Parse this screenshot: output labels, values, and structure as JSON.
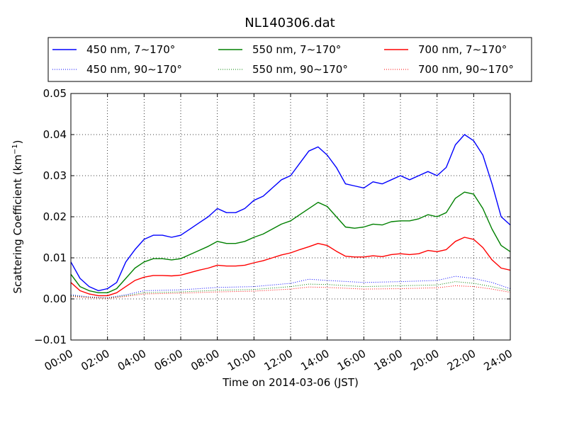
{
  "chart_data": {
    "type": "line",
    "title": "NL140306.dat",
    "xlabel": "Time on 2014-03-06 (JST)",
    "ylabel_main": "Scattering Coefficient (km",
    "ylabel_sup": "−1",
    "ylabel_end": ")",
    "xlim": [
      0,
      24
    ],
    "ylim": [
      -0.01,
      0.05
    ],
    "x_ticks": [
      "00:00",
      "02:00",
      "04:00",
      "06:00",
      "08:00",
      "10:00",
      "12:00",
      "14:00",
      "16:00",
      "18:00",
      "20:00",
      "22:00",
      "24:00"
    ],
    "y_ticks": [
      "0.05",
      "0.04",
      "0.03",
      "0.02",
      "0.01",
      "0.00",
      "−0.01"
    ],
    "grid": true,
    "legend_position": "top",
    "series": [
      {
        "name": "450 nm, 7∼170°",
        "color": "#0000ff",
        "style": "solid",
        "x": [
          0,
          0.5,
          1,
          1.5,
          2,
          2.5,
          3,
          3.5,
          4,
          4.5,
          5,
          5.5,
          6,
          6.5,
          7,
          7.5,
          8,
          8.5,
          9,
          9.5,
          10,
          10.5,
          11,
          11.5,
          12,
          12.5,
          13,
          13.5,
          14,
          14.5,
          15,
          15.5,
          16,
          16.5,
          17,
          17.5,
          18,
          18.5,
          19,
          19.5,
          20,
          20.5,
          21,
          21.5,
          22,
          22.5,
          23,
          23.5,
          24
        ],
        "y": [
          0.009,
          0.005,
          0.003,
          0.002,
          0.0025,
          0.004,
          0.009,
          0.012,
          0.0145,
          0.0155,
          0.0155,
          0.015,
          0.0155,
          0.017,
          0.0185,
          0.02,
          0.022,
          0.021,
          0.021,
          0.022,
          0.024,
          0.025,
          0.027,
          0.029,
          0.03,
          0.033,
          0.036,
          0.037,
          0.035,
          0.032,
          0.028,
          0.0275,
          0.027,
          0.0285,
          0.028,
          0.029,
          0.03,
          0.029,
          0.03,
          0.031,
          0.03,
          0.032,
          0.0375,
          0.04,
          0.0385,
          0.035,
          0.028,
          0.02,
          0.018
        ]
      },
      {
        "name": "450 nm, 90∼170°",
        "color": "#0000ff",
        "style": "dotted",
        "x": [
          0,
          1,
          2,
          3,
          4,
          6,
          8,
          10,
          12,
          13,
          14,
          16,
          18,
          20,
          21,
          22,
          23,
          24
        ],
        "y": [
          0.001,
          0.0005,
          0.0003,
          0.001,
          0.002,
          0.0022,
          0.0028,
          0.003,
          0.0038,
          0.0048,
          0.0045,
          0.004,
          0.0042,
          0.0045,
          0.0055,
          0.005,
          0.004,
          0.0025
        ]
      },
      {
        "name": "550 nm, 7∼170°",
        "color": "#008000",
        "style": "solid",
        "x": [
          0,
          0.5,
          1,
          1.5,
          2,
          2.5,
          3,
          3.5,
          4,
          4.5,
          5,
          5.5,
          6,
          6.5,
          7,
          7.5,
          8,
          8.5,
          9,
          9.5,
          10,
          10.5,
          11,
          11.5,
          12,
          12.5,
          13,
          13.5,
          14,
          14.5,
          15,
          15.5,
          16,
          16.5,
          17,
          17.5,
          18,
          18.5,
          19,
          19.5,
          20,
          20.5,
          21,
          21.5,
          22,
          22.5,
          23,
          23.5,
          24
        ],
        "y": [
          0.006,
          0.003,
          0.002,
          0.0015,
          0.0015,
          0.0025,
          0.005,
          0.0075,
          0.009,
          0.0098,
          0.0098,
          0.0095,
          0.0098,
          0.0108,
          0.0118,
          0.0128,
          0.014,
          0.0135,
          0.0135,
          0.014,
          0.015,
          0.0158,
          0.017,
          0.0182,
          0.019,
          0.0205,
          0.022,
          0.0235,
          0.0225,
          0.02,
          0.0175,
          0.0172,
          0.0175,
          0.0182,
          0.018,
          0.0188,
          0.019,
          0.019,
          0.0195,
          0.0205,
          0.02,
          0.021,
          0.0245,
          0.026,
          0.0255,
          0.022,
          0.017,
          0.013,
          0.0115
        ]
      },
      {
        "name": "550 nm, 90∼170°",
        "color": "#008000",
        "style": "dotted",
        "x": [
          0,
          1,
          2,
          3,
          4,
          6,
          8,
          10,
          12,
          13,
          14,
          16,
          18,
          20,
          21,
          22,
          23,
          24
        ],
        "y": [
          0.0008,
          0.0004,
          0.0002,
          0.0008,
          0.0015,
          0.0017,
          0.0021,
          0.0023,
          0.003,
          0.0036,
          0.0035,
          0.003,
          0.0032,
          0.0034,
          0.0042,
          0.0038,
          0.003,
          0.002
        ]
      },
      {
        "name": "700 nm, 7∼170°",
        "color": "#ff0000",
        "style": "solid",
        "x": [
          0,
          0.5,
          1,
          1.5,
          2,
          2.5,
          3,
          3.5,
          4,
          4.5,
          5,
          5.5,
          6,
          6.5,
          7,
          7.5,
          8,
          8.5,
          9,
          9.5,
          10,
          10.5,
          11,
          11.5,
          12,
          12.5,
          13,
          13.5,
          14,
          14.5,
          15,
          15.5,
          16,
          16.5,
          17,
          17.5,
          18,
          18.5,
          19,
          19.5,
          20,
          20.5,
          21,
          21.5,
          22,
          22.5,
          23,
          23.5,
          24
        ],
        "y": [
          0.004,
          0.002,
          0.0012,
          0.0008,
          0.0008,
          0.0015,
          0.003,
          0.0045,
          0.0053,
          0.0057,
          0.0057,
          0.0056,
          0.0058,
          0.0064,
          0.007,
          0.0075,
          0.0082,
          0.008,
          0.008,
          0.0082,
          0.0088,
          0.0093,
          0.01,
          0.0107,
          0.0112,
          0.012,
          0.0127,
          0.0135,
          0.013,
          0.0116,
          0.0104,
          0.0102,
          0.0102,
          0.0105,
          0.0103,
          0.0108,
          0.011,
          0.0108,
          0.011,
          0.0118,
          0.0115,
          0.012,
          0.014,
          0.015,
          0.0145,
          0.0125,
          0.0095,
          0.0075,
          0.007
        ]
      },
      {
        "name": "700 nm, 90∼170°",
        "color": "#ff0000",
        "style": "dotted",
        "x": [
          0,
          1,
          2,
          3,
          4,
          6,
          8,
          10,
          12,
          13,
          14,
          16,
          18,
          20,
          21,
          22,
          23,
          24
        ],
        "y": [
          0.0006,
          0.0003,
          0.0001,
          0.0006,
          0.0012,
          0.0014,
          0.0017,
          0.0019,
          0.0024,
          0.0029,
          0.0028,
          0.0024,
          0.0025,
          0.0027,
          0.0032,
          0.003,
          0.0024,
          0.0016
        ]
      }
    ]
  }
}
